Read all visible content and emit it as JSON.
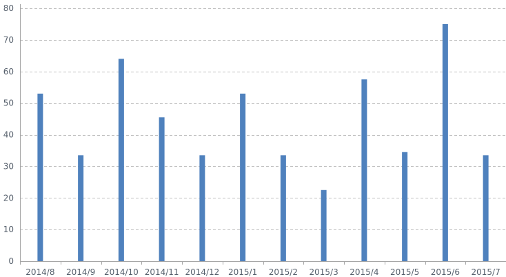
{
  "chart_data": {
    "type": "bar",
    "title": "",
    "xlabel": "",
    "ylabel": "",
    "categories": [
      "2014/8",
      "2014/9",
      "2014/10",
      "2014/11",
      "2014/12",
      "2015/1",
      "2015/2",
      "2015/3",
      "2015/4",
      "2015/5",
      "2015/6",
      "2015/7"
    ],
    "values": [
      53,
      33.5,
      64,
      45.5,
      33.5,
      53,
      33.5,
      22.5,
      57.5,
      34.5,
      75,
      33.5
    ],
    "ylim": [
      0,
      80
    ],
    "yticks": [
      0,
      10,
      20,
      30,
      40,
      50,
      60,
      70,
      80
    ],
    "ytick_labels": [
      "0",
      "10",
      "20",
      "30",
      "40",
      "50",
      "60",
      "70",
      "80"
    ],
    "grid": true,
    "grid_style": "dashed",
    "bar_color": "#4f81bd",
    "grid_color": "#bfbfbf",
    "axis_color": "#a6a6a6",
    "legend": "none"
  }
}
